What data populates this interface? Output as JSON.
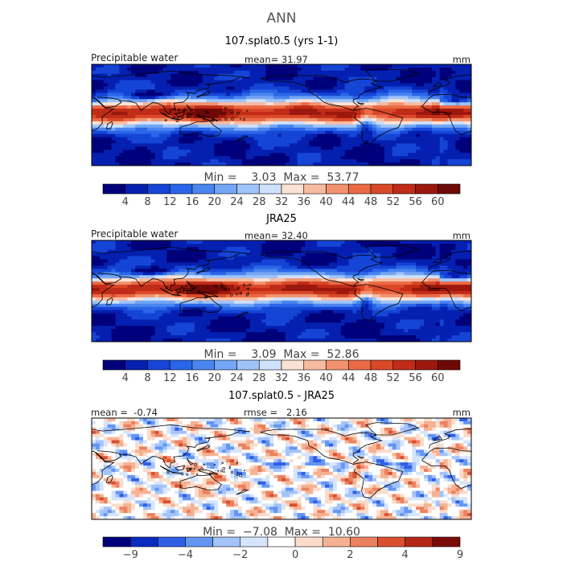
{
  "page": {
    "title": "ANN"
  },
  "palettes": {
    "abs": [
      "#00007a",
      "#0520b0",
      "#1545d6",
      "#2a66e8",
      "#4a85f0",
      "#73a6f6",
      "#9fc4fa",
      "#cfe1fc",
      "#fbe2d4",
      "#f7bba0",
      "#f2926f",
      "#ea6a45",
      "#da4828",
      "#c02c17",
      "#9c180e",
      "#6e0906"
    ],
    "diff": [
      "#00007a",
      "#0a2bbf",
      "#2f5fe6",
      "#6595f3",
      "#a3c3f9",
      "#d6e5fc",
      "#ffffff",
      "#fbdccb",
      "#f5b293",
      "#ec8160",
      "#d9502f",
      "#b42817",
      "#7a0c0a"
    ]
  },
  "panels": [
    {
      "id": "model",
      "title": "107.splat0.5 (yrs 1-1)",
      "left_label": "Precipitable water",
      "center_label": "mean=  31.97",
      "right_label": "mm",
      "minmax_label": "Min =    3.03  Max =  53.77",
      "colorbar_ticks": [
        "4",
        "8",
        "12",
        "16",
        "20",
        "24",
        "28",
        "32",
        "36",
        "40",
        "44",
        "48",
        "52",
        "56",
        "60"
      ]
    },
    {
      "id": "obs",
      "title": "JRA25",
      "left_label": "Precipitable water",
      "center_label": "mean=  32.40",
      "right_label": "mm",
      "minmax_label": "Min =    3.09  Max =  52.86",
      "colorbar_ticks": [
        "4",
        "8",
        "12",
        "16",
        "20",
        "24",
        "28",
        "32",
        "36",
        "40",
        "44",
        "48",
        "52",
        "56",
        "60"
      ]
    },
    {
      "id": "diff",
      "title": "107.splat0.5 - JRA25",
      "left_label": "mean =  -0.74",
      "center_label": "rmse =   2.16",
      "right_label": "mm",
      "minmax_label": "Min =  −7.08  Max =  10.60",
      "colorbar_ticks": [
        "−9",
        "",
        "−4",
        "",
        "−2",
        "",
        "0",
        "",
        "2",
        "",
        "4",
        "",
        "9"
      ]
    }
  ],
  "chart_data": {
    "type": "heatmap",
    "title": "ANN",
    "variable": "Precipitable water",
    "units": "mm",
    "panels": [
      {
        "name": "107.splat0.5 (yrs 1-1)",
        "mean": 31.97,
        "min": 3.03,
        "max": 53.77,
        "contour_levels": [
          4,
          8,
          12,
          16,
          20,
          24,
          28,
          32,
          36,
          40,
          44,
          48,
          52,
          56,
          60
        ]
      },
      {
        "name": "JRA25",
        "mean": 32.4,
        "min": 3.09,
        "max": 52.86,
        "contour_levels": [
          4,
          8,
          12,
          16,
          20,
          24,
          28,
          32,
          36,
          40,
          44,
          48,
          52,
          56,
          60
        ]
      },
      {
        "name": "107.splat0.5 - JRA25",
        "mean": -0.74,
        "rmse": 2.16,
        "min": -7.08,
        "max": 10.6,
        "contour_levels": [
          -9,
          -4,
          -2,
          0,
          2,
          4,
          9
        ]
      }
    ]
  }
}
